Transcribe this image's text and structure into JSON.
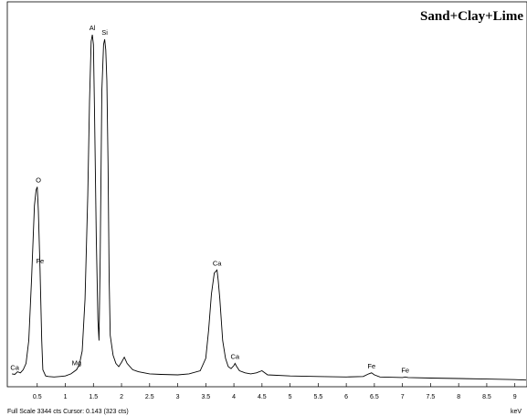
{
  "chart_data": {
    "type": "line",
    "title": "Sand+Clay+Lime",
    "xlabel": "keV",
    "xlim": [
      0,
      9.2
    ],
    "ylim": [
      0,
      3344
    ],
    "grid": false,
    "xtick_labels": [
      "0.5",
      "1",
      "1.5",
      "2",
      "2.5",
      "3",
      "3.5",
      "4",
      "4.5",
      "5",
      "5.5",
      "6",
      "6.5",
      "7",
      "7.5",
      "8",
      "8.5",
      "9"
    ],
    "xtick_values": [
      0.5,
      1,
      1.5,
      2,
      2.5,
      3,
      3.5,
      4,
      4.5,
      5,
      5.5,
      6,
      6.5,
      7,
      7.5,
      8,
      8.5,
      9
    ],
    "series": [
      {
        "x": [
          0.05,
          0.1,
          0.15,
          0.2,
          0.25,
          0.3,
          0.35,
          0.4,
          0.45,
          0.48,
          0.5,
          0.52,
          0.55,
          0.58,
          0.6,
          0.65,
          0.7,
          0.8,
          0.9,
          1.0,
          1.1,
          1.2,
          1.25,
          1.3,
          1.35,
          1.4,
          1.43,
          1.46,
          1.48,
          1.5,
          1.52,
          1.55,
          1.58,
          1.6,
          1.62,
          1.65,
          1.68,
          1.7,
          1.72,
          1.74,
          1.76,
          1.78,
          1.8,
          1.85,
          1.9,
          1.95,
          2.0,
          2.05,
          2.1,
          2.2,
          2.3,
          2.5,
          2.7,
          3.0,
          3.2,
          3.4,
          3.5,
          3.55,
          3.6,
          3.65,
          3.7,
          3.72,
          3.75,
          3.8,
          3.85,
          3.9,
          3.95,
          4.0,
          4.02,
          4.05,
          4.1,
          4.2,
          4.3,
          4.4,
          4.5,
          4.6,
          5.0,
          5.5,
          6.0,
          6.3,
          6.4,
          6.45,
          6.5,
          6.6,
          7.0,
          7.05,
          7.1,
          7.5,
          8.0,
          8.5,
          9.0,
          9.2
        ],
        "y": [
          80,
          75,
          100,
          90,
          120,
          180,
          400,
          1000,
          1700,
          1850,
          1880,
          1650,
          1100,
          400,
          120,
          60,
          55,
          50,
          55,
          60,
          80,
          120,
          170,
          300,
          800,
          1800,
          2700,
          3280,
          3344,
          3250,
          2600,
          1400,
          600,
          400,
          1200,
          2800,
          3250,
          3300,
          3200,
          2900,
          2100,
          1000,
          450,
          260,
          180,
          150,
          190,
          240,
          180,
          120,
          100,
          80,
          75,
          70,
          80,
          110,
          230,
          500,
          850,
          1050,
          1080,
          980,
          800,
          400,
          230,
          150,
          130,
          160,
          180,
          150,
          110,
          90,
          80,
          90,
          110,
          70,
          60,
          55,
          50,
          55,
          80,
          90,
          70,
          50,
          45,
          50,
          45,
          40,
          35,
          30,
          25,
          20
        ]
      }
    ],
    "annotations": [
      {
        "text": "O",
        "x": 0.52,
        "y": 1880
      },
      {
        "text": "Fe",
        "x": 0.55,
        "y": 1100
      },
      {
        "text": "Ca",
        "x": 0.1,
        "y": 75
      },
      {
        "text": "Mg",
        "x": 1.2,
        "y": 120
      },
      {
        "text": "Al",
        "x": 1.48,
        "y": 3344
      },
      {
        "text": "Si",
        "x": 1.7,
        "y": 3300
      },
      {
        "text": "Ca",
        "x": 3.7,
        "y": 1080
      },
      {
        "text": "Ca",
        "x": 4.02,
        "y": 180
      },
      {
        "text": "Fe",
        "x": 6.45,
        "y": 90
      },
      {
        "text": "Fe",
        "x": 7.05,
        "y": 50
      }
    ],
    "footer_text": "Full Scale 3344 cts Cursor: 0.143  (323 cts)",
    "line_color": "#000000"
  }
}
